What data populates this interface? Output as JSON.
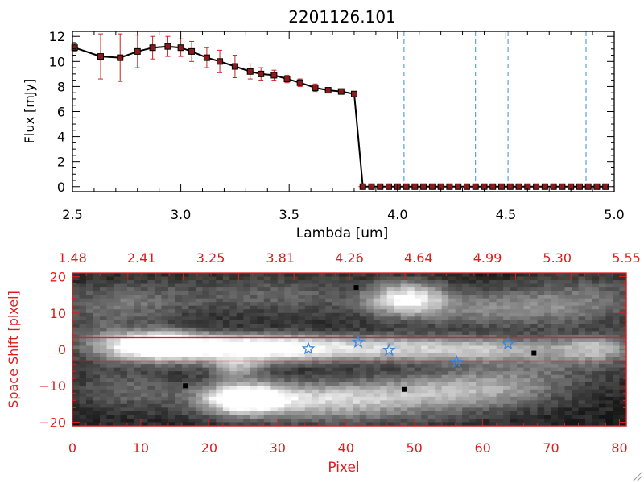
{
  "chart_data": [
    {
      "type": "line",
      "title": "2201126.101",
      "xlabel": "Lambda [um]",
      "ylabel": "Flux [mJy]",
      "xlim": [
        2.5,
        5.0
      ],
      "ylim": [
        -0.4,
        12.4
      ],
      "xticks": [
        2.5,
        3.0,
        3.5,
        4.0,
        4.5,
        5.0
      ],
      "xtick_labels": [
        "2.5",
        "3.0",
        "3.5",
        "4.0",
        "4.5",
        "5.0"
      ],
      "yticks": [
        0,
        2,
        4,
        6,
        8,
        10,
        12
      ],
      "ytick_labels": [
        "0",
        "2",
        "4",
        "6",
        "8",
        "10",
        "12"
      ],
      "vlines": [
        4.03,
        4.36,
        4.51,
        4.87
      ],
      "series": [
        {
          "name": "flux",
          "x": [
            2.51,
            2.63,
            2.72,
            2.8,
            2.87,
            2.94,
            3.0,
            3.05,
            3.12,
            3.18,
            3.25,
            3.32,
            3.37,
            3.43,
            3.49,
            3.55,
            3.62,
            3.68,
            3.74,
            3.8,
            3.84,
            3.88,
            3.92,
            3.96,
            4.0,
            4.04,
            4.08,
            4.12,
            4.16,
            4.2,
            4.24,
            4.28,
            4.32,
            4.36,
            4.4,
            4.44,
            4.48,
            4.52,
            4.56,
            4.6,
            4.64,
            4.68,
            4.72,
            4.76,
            4.8,
            4.84,
            4.88,
            4.92,
            4.96
          ],
          "y": [
            11.1,
            10.4,
            10.3,
            10.8,
            11.1,
            11.2,
            11.1,
            10.8,
            10.3,
            10.0,
            9.6,
            9.2,
            9.0,
            8.9,
            8.6,
            8.3,
            7.9,
            7.7,
            7.6,
            7.4,
            0,
            0,
            0,
            0,
            0,
            0,
            0,
            0,
            0,
            0,
            0,
            0,
            0,
            0,
            0,
            0,
            0,
            0,
            0,
            0,
            0,
            0,
            0,
            0,
            0,
            0,
            0,
            0,
            0
          ],
          "yerr": [
            0.3,
            1.8,
            1.9,
            1.3,
            0.9,
            0.8,
            0.7,
            0.8,
            0.8,
            0.9,
            0.9,
            0.6,
            0.5,
            0.4,
            0.3,
            0.3,
            0.3,
            0.2,
            0.2,
            0.2,
            0,
            0,
            0,
            0,
            0,
            0,
            0,
            0,
            0,
            0,
            0,
            0,
            0,
            0,
            0,
            0,
            0,
            0,
            0,
            0,
            0,
            0,
            0,
            0,
            0,
            0,
            0,
            0,
            0
          ]
        }
      ]
    },
    {
      "type": "heatmap",
      "xlabel": "Pixel",
      "ylabel": "Space Shift [pixel]",
      "xlim": [
        0,
        81
      ],
      "ylim": [
        -21,
        21
      ],
      "xticks": [
        0,
        10,
        20,
        30,
        40,
        50,
        60,
        70,
        80
      ],
      "xtick_labels": [
        "0",
        "10",
        "20",
        "30",
        "40",
        "50",
        "60",
        "70",
        "80"
      ],
      "yticks": [
        -20,
        -10,
        0,
        10,
        20
      ],
      "ytick_labels": [
        "−20",
        "−10",
        "0",
        "10",
        "20"
      ],
      "top_axis_ticks": [
        0,
        8.1,
        16.2,
        24.3,
        32.4,
        40.5,
        48.6,
        56.7,
        64.8,
        72.9,
        81
      ],
      "top_axis_labels": [
        "1.48",
        "2.41",
        "3.25",
        "3.81",
        "4.26",
        "4.64",
        "4.99",
        "5.30",
        "5.55"
      ],
      "top_axis_label_positions": [
        0,
        10.1,
        20.2,
        30.4,
        40.5,
        50.6,
        60.7,
        70.9,
        81
      ],
      "extraction_band": [
        -3.2,
        3.2
      ],
      "stars": [
        {
          "x": 34.5,
          "y": 0.2
        },
        {
          "x": 41.8,
          "y": 2.0
        },
        {
          "x": 46.3,
          "y": -0.2
        },
        {
          "x": 56.2,
          "y": -3.5
        },
        {
          "x": 63.7,
          "y": 1.5
        }
      ],
      "blobs": [
        {
          "x": 12,
          "y": 1,
          "sx": 5,
          "sy": 2.8,
          "v": 1.0
        },
        {
          "x": 24,
          "y": 0.5,
          "sx": 9,
          "sy": 2.6,
          "v": 0.75
        },
        {
          "x": 38,
          "y": 0.3,
          "sx": 12,
          "sy": 2.6,
          "v": 0.55
        },
        {
          "x": 58,
          "y": 0,
          "sx": 10,
          "sy": 2.4,
          "v": 0.5
        },
        {
          "x": 77,
          "y": 0.5,
          "sx": 4,
          "sy": 2.5,
          "v": 0.45
        },
        {
          "x": 49,
          "y": 14,
          "sx": 4,
          "sy": 3.2,
          "v": 0.75
        },
        {
          "x": 64,
          "y": 11,
          "sx": 12,
          "sy": 3.5,
          "v": 0.4
        },
        {
          "x": 8,
          "y": 13,
          "sx": 7,
          "sy": 4,
          "v": 0.3
        },
        {
          "x": 30,
          "y": 15,
          "sx": 10,
          "sy": 4,
          "v": 0.25
        },
        {
          "x": 25,
          "y": -13.5,
          "sx": 4,
          "sy": 3,
          "v": 0.9
        },
        {
          "x": 33,
          "y": -13.5,
          "sx": 10,
          "sy": 3,
          "v": 0.55
        },
        {
          "x": 50,
          "y": -12,
          "sx": 10,
          "sy": 3.5,
          "v": 0.4
        },
        {
          "x": 62,
          "y": -10,
          "sx": 8,
          "sy": 4,
          "v": 0.35
        },
        {
          "x": 8,
          "y": -11,
          "sx": 6,
          "sy": 4,
          "v": 0.25
        },
        {
          "x": 24,
          "y": -5,
          "sx": 3,
          "sy": 2,
          "v": 0.45
        },
        {
          "x": 3,
          "y": 3,
          "sx": 4,
          "sy": 5,
          "v": 0.2
        },
        {
          "x": 72,
          "y": -3,
          "sx": 8,
          "sy": 4,
          "v": 0.2
        },
        {
          "x": 40,
          "y": -18,
          "sx": 12,
          "sy": 3,
          "v": 0.2
        },
        {
          "x": 75,
          "y": 16,
          "sx": 8,
          "sy": 4,
          "v": 0.2
        }
      ]
    }
  ],
  "colors": {
    "axis_black": "#000000",
    "axis_red": "#dd1c1c",
    "error_bar": "#cc2222",
    "marker_fill": "#8b1a1a",
    "vline_blue": "#3f8fd8",
    "star_blue": "#3a86e0",
    "band_red": "#e02020"
  }
}
